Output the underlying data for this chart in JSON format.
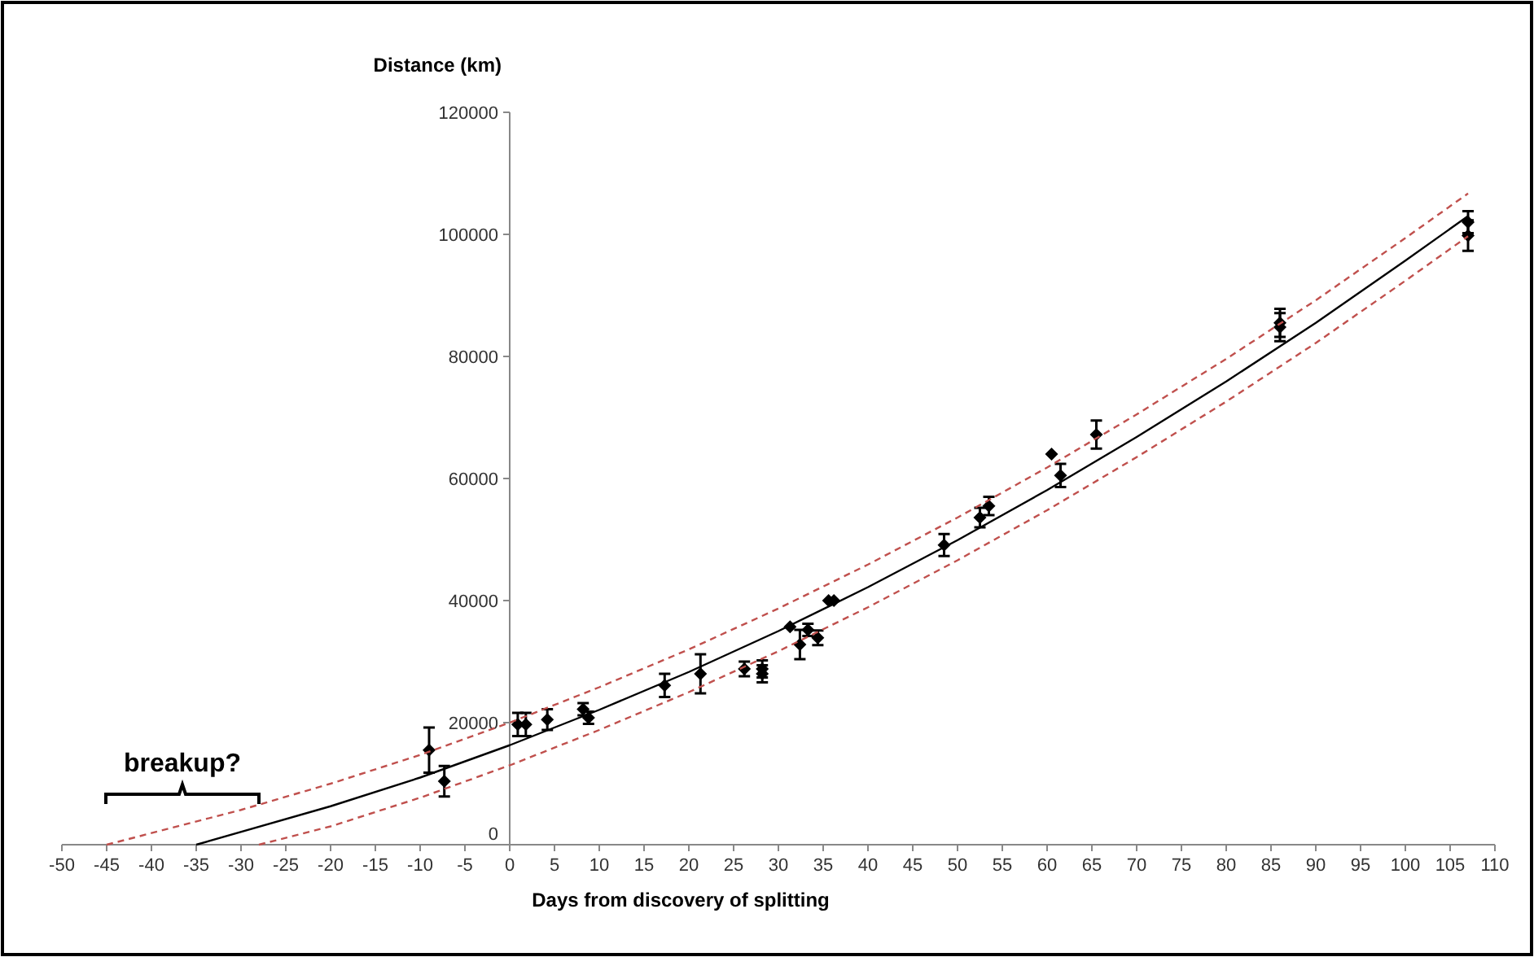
{
  "chart_data": {
    "type": "scatter",
    "xlabel": "Days from discovery of splitting",
    "ylabel": "Distance (km)",
    "xlim": [
      -50,
      110
    ],
    "xticks": [
      -50,
      -45,
      -40,
      -35,
      -30,
      -25,
      -20,
      -15,
      -10,
      -5,
      0,
      5,
      10,
      15,
      20,
      25,
      30,
      35,
      40,
      45,
      50,
      55,
      60,
      65,
      70,
      75,
      80,
      85,
      90,
      95,
      100,
      105,
      110
    ],
    "ylim": [
      0,
      120000
    ],
    "yticks": [
      0,
      20000,
      40000,
      60000,
      80000,
      100000,
      120000
    ],
    "grid": false,
    "series": [
      {
        "color": "#000000",
        "marker": "diamond",
        "x": [
          -9,
          -7.3,
          0.9,
          1.8,
          4.2,
          8.2,
          8.8,
          17.3,
          21.3,
          26.2,
          28.2,
          28.2,
          31.3,
          32.4,
          33.3,
          34.4,
          35.6,
          36.2,
          48.5,
          52.5,
          53.5,
          60.5,
          61.5,
          65.5,
          86,
          86,
          107,
          107
        ],
        "values": [
          15500,
          10400,
          19700,
          19700,
          20500,
          22200,
          20800,
          26100,
          28000,
          28800,
          28800,
          28000,
          35700,
          32800,
          35200,
          33900,
          40000,
          40000,
          49100,
          53600,
          55500,
          64000,
          60500,
          67200,
          85500,
          84800,
          102000,
          99800
        ],
        "errors": [
          3700,
          2500,
          1900,
          1900,
          1700,
          1000,
          1000,
          1900,
          3200,
          1200,
          1400,
          1400,
          null,
          2400,
          1000,
          1200,
          null,
          null,
          1800,
          1600,
          1500,
          null,
          1900,
          2300,
          2300,
          2300,
          1800,
          2500
        ]
      },
      {
        "type": "line",
        "color": "#000000",
        "marker": "none",
        "line_style": "solid",
        "x": [
          -35,
          -20,
          -10,
          0,
          10,
          20,
          30,
          40,
          50,
          60,
          70,
          80,
          90,
          100,
          107
        ],
        "values": [
          0,
          6300,
          11000,
          16300,
          22100,
          28300,
          35000,
          42200,
          49900,
          58100,
          66800,
          75900,
          85500,
          95700,
          103000
        ]
      },
      {
        "type": "line",
        "color": "#c0504d",
        "marker": "none",
        "line_style": "dashed",
        "x": [
          -45,
          -30,
          -20,
          -10,
          0,
          10,
          20,
          30,
          40,
          50,
          60,
          70,
          80,
          90,
          100,
          107
        ],
        "values": [
          0,
          5700,
          10000,
          14700,
          20000,
          25800,
          32000,
          38700,
          45900,
          53600,
          61800,
          70500,
          79600,
          89200,
          99400,
          106700
        ]
      },
      {
        "type": "line",
        "color": "#c0504d",
        "marker": "none",
        "line_style": "dashed",
        "x": [
          -28,
          -20,
          -10,
          0,
          10,
          20,
          30,
          40,
          50,
          60,
          70,
          80,
          90,
          100,
          107
        ],
        "values": [
          0,
          3000,
          7700,
          13000,
          18800,
          25000,
          31700,
          38900,
          46600,
          54800,
          63500,
          72600,
          82200,
          92400,
          99700
        ]
      }
    ],
    "annotations": [
      "breakup?"
    ]
  }
}
